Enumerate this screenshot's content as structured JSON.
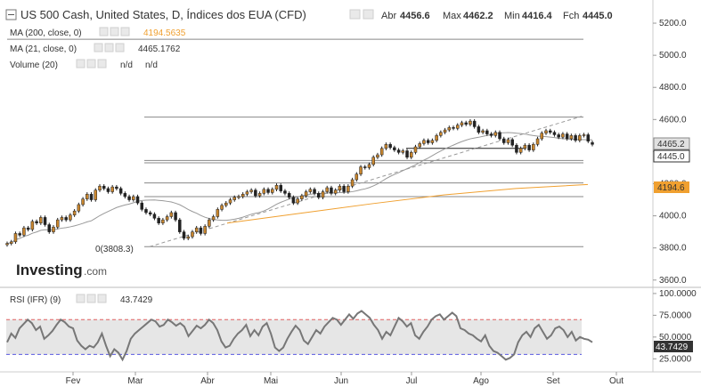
{
  "header": {
    "title": "US 500 Cash, United States, D, Índices dos EUA (CFD)",
    "ohlc_labels": [
      "Abr",
      "Max",
      "Min",
      "Fch"
    ],
    "ohlc_values": [
      "4456.6",
      "4462.2",
      "4416.4",
      "4445.0"
    ]
  },
  "indicators": [
    {
      "label": "MA (200, close, 0)",
      "value": "4194.5635",
      "color": "#f0a030"
    },
    {
      "label": "MA (21, close, 0)",
      "value": "4465.1762",
      "color": "#333333"
    },
    {
      "label": "Volume (20)",
      "value": "n/d",
      "value2": "n/d",
      "color": "#333333"
    }
  ],
  "rsi_panel": {
    "label": "RSI (IFR) (9)",
    "value": "43.7429"
  },
  "logo": {
    "main": "Investing",
    "suffix": ".com"
  },
  "fib_label": "0(3808.3)",
  "price_badges": {
    "last": "4465.2",
    "close": "4445.0",
    "ma200": "4194.6",
    "rsi": "43.7429"
  },
  "colors": {
    "up": "#c9862e",
    "down": "#222222",
    "ma200": "#f0a030",
    "ma21": "#999999",
    "rsi_line": "#777777",
    "ob_line": "#e06060",
    "os_line": "#5a5ae0",
    "band": "#e6e6e6"
  },
  "chart_data": [
    {
      "type": "candlestick",
      "title": "US 500 Cash, United States, D, Índices dos EUA (CFD)",
      "x_labels": [
        "Fev",
        "Mar",
        "Abr",
        "Mai",
        "Jun",
        "Jul",
        "Ago",
        "Set",
        "Out"
      ],
      "y_ticks": [
        "5200.0",
        "5000.0",
        "4800.0",
        "4600.0",
        "4400.0",
        "4200.0",
        "4000.0",
        "3800.0",
        "3600.0"
      ],
      "ylim": [
        3560,
        5300
      ],
      "series": [
        {
          "name": "MA (200, close, 0)",
          "values": [
            [
              0.0,
              3955
            ],
            [
              0.2,
              4015
            ],
            [
              0.4,
              4075
            ],
            [
              0.6,
              4130
            ],
            [
              0.8,
              4170
            ],
            [
              1.0,
              4195
            ]
          ]
        },
        {
          "name": "MA (21, close, 0)"
        }
      ],
      "horizontal_levels": [
        5100,
        4615,
        4420,
        4345,
        4330,
        4205,
        4120,
        3808
      ],
      "candles": [
        [
          3820,
          3828
        ],
        [
          3828,
          3838
        ],
        [
          3838,
          3890
        ],
        [
          3890,
          3880
        ],
        [
          3880,
          3925
        ],
        [
          3925,
          3915
        ],
        [
          3915,
          3965
        ],
        [
          3965,
          3955
        ],
        [
          3955,
          3990
        ],
        [
          3990,
          3945
        ],
        [
          3945,
          3900
        ],
        [
          3900,
          3930
        ],
        [
          3930,
          3975
        ],
        [
          3975,
          3990
        ],
        [
          3990,
          3975
        ],
        [
          3975,
          4005
        ],
        [
          4005,
          4030
        ],
        [
          4030,
          4070
        ],
        [
          4070,
          4105
        ],
        [
          4105,
          4135
        ],
        [
          4135,
          4100
        ],
        [
          4100,
          4160
        ],
        [
          4160,
          4185
        ],
        [
          4185,
          4170
        ],
        [
          4170,
          4150
        ],
        [
          4150,
          4180
        ],
        [
          4180,
          4170
        ],
        [
          4170,
          4140
        ],
        [
          4140,
          4120
        ],
        [
          4120,
          4100
        ],
        [
          4100,
          4120
        ],
        [
          4120,
          4080
        ],
        [
          4080,
          4040
        ],
        [
          4040,
          4020
        ],
        [
          4020,
          4010
        ],
        [
          4010,
          3985
        ],
        [
          3985,
          3955
        ],
        [
          3955,
          3975
        ],
        [
          3975,
          3995
        ],
        [
          3995,
          4020
        ],
        [
          4020,
          3975
        ],
        [
          3975,
          3900
        ],
        [
          3900,
          3860
        ],
        [
          3860,
          3870
        ],
        [
          3870,
          3900
        ],
        [
          3900,
          3925
        ],
        [
          3925,
          3890
        ],
        [
          3890,
          3935
        ],
        [
          3935,
          3975
        ],
        [
          3975,
          3995
        ],
        [
          3995,
          4040
        ],
        [
          4040,
          4065
        ],
        [
          4065,
          4080
        ],
        [
          4080,
          4100
        ],
        [
          4100,
          4115
        ],
        [
          4115,
          4120
        ],
        [
          4120,
          4135
        ],
        [
          4135,
          4150
        ],
        [
          4150,
          4160
        ],
        [
          4160,
          4125
        ],
        [
          4125,
          4140
        ],
        [
          4140,
          4165
        ],
        [
          4165,
          4145
        ],
        [
          4145,
          4165
        ],
        [
          4165,
          4190
        ],
        [
          4190,
          4155
        ],
        [
          4155,
          4140
        ],
        [
          4140,
          4115
        ],
        [
          4115,
          4080
        ],
        [
          4080,
          4105
        ],
        [
          4105,
          4125
        ],
        [
          4125,
          4150
        ],
        [
          4150,
          4165
        ],
        [
          4165,
          4140
        ],
        [
          4140,
          4115
        ],
        [
          4115,
          4150
        ],
        [
          4150,
          4175
        ],
        [
          4175,
          4140
        ],
        [
          4140,
          4160
        ],
        [
          4160,
          4185
        ],
        [
          4185,
          4150
        ],
        [
          4150,
          4185
        ],
        [
          4185,
          4225
        ],
        [
          4225,
          4260
        ],
        [
          4260,
          4305
        ],
        [
          4305,
          4300
        ],
        [
          4300,
          4320
        ],
        [
          4320,
          4365
        ],
        [
          4365,
          4380
        ],
        [
          4380,
          4420
        ],
        [
          4420,
          4445
        ],
        [
          4445,
          4425
        ],
        [
          4425,
          4410
        ],
        [
          4410,
          4395
        ],
        [
          4395,
          4405
        ],
        [
          4405,
          4365
        ],
        [
          4365,
          4395
        ],
        [
          4395,
          4430
        ],
        [
          4430,
          4450
        ],
        [
          4450,
          4470
        ],
        [
          4470,
          4455
        ],
        [
          4455,
          4470
        ],
        [
          4470,
          4500
        ],
        [
          4500,
          4520
        ],
        [
          4520,
          4535
        ],
        [
          4535,
          4550
        ],
        [
          4550,
          4545
        ],
        [
          4545,
          4565
        ],
        [
          4565,
          4580
        ],
        [
          4580,
          4570
        ],
        [
          4570,
          4590
        ],
        [
          4590,
          4555
        ],
        [
          4555,
          4520
        ],
        [
          4520,
          4530
        ],
        [
          4530,
          4510
        ],
        [
          4510,
          4500
        ],
        [
          4500,
          4520
        ],
        [
          4520,
          4480
        ],
        [
          4480,
          4455
        ],
        [
          4455,
          4475
        ],
        [
          4475,
          4440
        ],
        [
          4440,
          4395
        ],
        [
          4395,
          4420
        ],
        [
          4420,
          4440
        ],
        [
          4440,
          4410
        ],
        [
          4410,
          4445
        ],
        [
          4445,
          4480
        ],
        [
          4480,
          4515
        ],
        [
          4515,
          4530
        ],
        [
          4530,
          4520
        ],
        [
          4520,
          4505
        ],
        [
          4505,
          4490
        ],
        [
          4490,
          4510
        ],
        [
          4510,
          4480
        ],
        [
          4480,
          4500
        ],
        [
          4500,
          4470
        ],
        [
          4470,
          4500
        ],
        [
          4500,
          4505
        ],
        [
          4505,
          4465
        ],
        [
          4456.6,
          4445
        ]
      ]
    },
    {
      "type": "line",
      "title": "RSI (IFR) (9)",
      "x_labels": [
        "Fev",
        "Mar",
        "Abr",
        "Mai",
        "Jun",
        "Jul",
        "Ago",
        "Set",
        "Out"
      ],
      "y_ticks": [
        "100.0000",
        "75.0000",
        "50.0000",
        "25.0000"
      ],
      "ylim": [
        10,
        105
      ],
      "reference_lines": [
        70,
        30
      ],
      "series": [
        {
          "name": "RSI (IFR) (9)",
          "values": [
            44,
            54,
            49,
            60,
            65,
            70,
            66,
            58,
            62,
            48,
            52,
            57,
            64,
            70,
            67,
            62,
            60,
            46,
            40,
            36,
            40,
            38,
            44,
            54,
            40,
            28,
            36,
            32,
            24,
            34,
            48,
            54,
            58,
            62,
            66,
            70,
            68,
            62,
            64,
            70,
            67,
            63,
            66,
            62,
            51,
            57,
            63,
            60,
            64,
            70,
            66,
            58,
            45,
            38,
            40,
            48,
            54,
            58,
            64,
            51,
            58,
            52,
            62,
            66,
            54,
            38,
            34,
            38,
            48,
            56,
            63,
            58,
            46,
            42,
            50,
            58,
            54,
            62,
            67,
            72,
            70,
            64,
            70,
            76,
            71,
            77,
            80,
            76,
            72,
            64,
            58,
            48,
            56,
            52,
            62,
            72,
            68,
            62,
            66,
            52,
            48,
            56,
            62,
            70,
            74,
            76,
            70,
            74,
            78,
            74,
            60,
            58,
            54,
            52,
            48,
            45,
            52,
            40,
            34,
            32,
            28,
            24,
            26,
            30,
            44,
            52,
            56,
            50,
            60,
            64,
            56,
            48,
            52,
            60,
            62,
            58,
            50,
            56,
            46,
            50,
            48,
            47,
            44
          ]
        }
      ]
    }
  ]
}
